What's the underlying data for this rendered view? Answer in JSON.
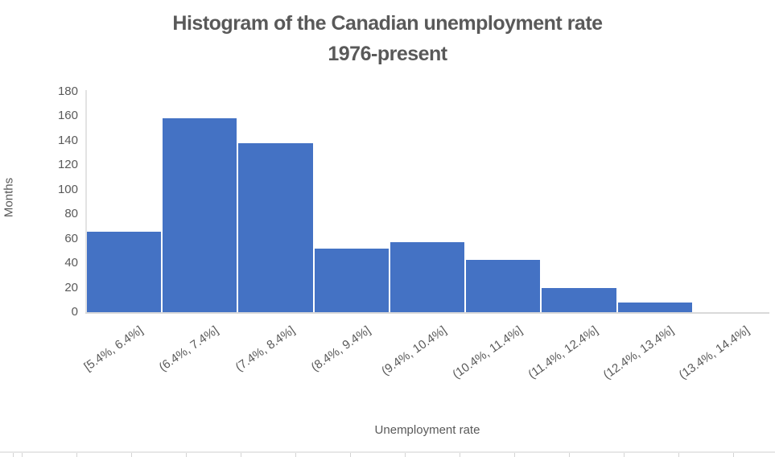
{
  "title_line1": "Histogram of the Canadian unemployment rate",
  "title_line2": "1976-present",
  "chart_data": {
    "type": "bar",
    "title": "Histogram of the Canadian unemployment rate 1976-present",
    "categories": [
      "[5.4%, 6.4%]",
      "(6.4%, 7.4%]",
      "(7.4%, 8.4%]",
      "(8.4%, 9.4%]",
      "(9.4%, 10.4%]",
      "(10.4%, 11.4%]",
      "(11.4%, 12.4%]",
      "(12.4%, 13.4%]",
      "(13.4%, 14.4%]"
    ],
    "values": [
      66,
      158,
      138,
      52,
      57,
      43,
      20,
      8,
      0
    ],
    "xlabel": "Unemployment rate",
    "ylabel": "Months",
    "ylim": [
      0,
      180
    ],
    "y_ticks": [
      0,
      20,
      40,
      60,
      80,
      100,
      120,
      140,
      160,
      180
    ],
    "legend_position": "none",
    "grid": "off",
    "bar_color": "#4472c4",
    "bar_gap_color": "#ffffff",
    "axis_line_color": "#d9d9d9",
    "text_color": "#595959"
  }
}
